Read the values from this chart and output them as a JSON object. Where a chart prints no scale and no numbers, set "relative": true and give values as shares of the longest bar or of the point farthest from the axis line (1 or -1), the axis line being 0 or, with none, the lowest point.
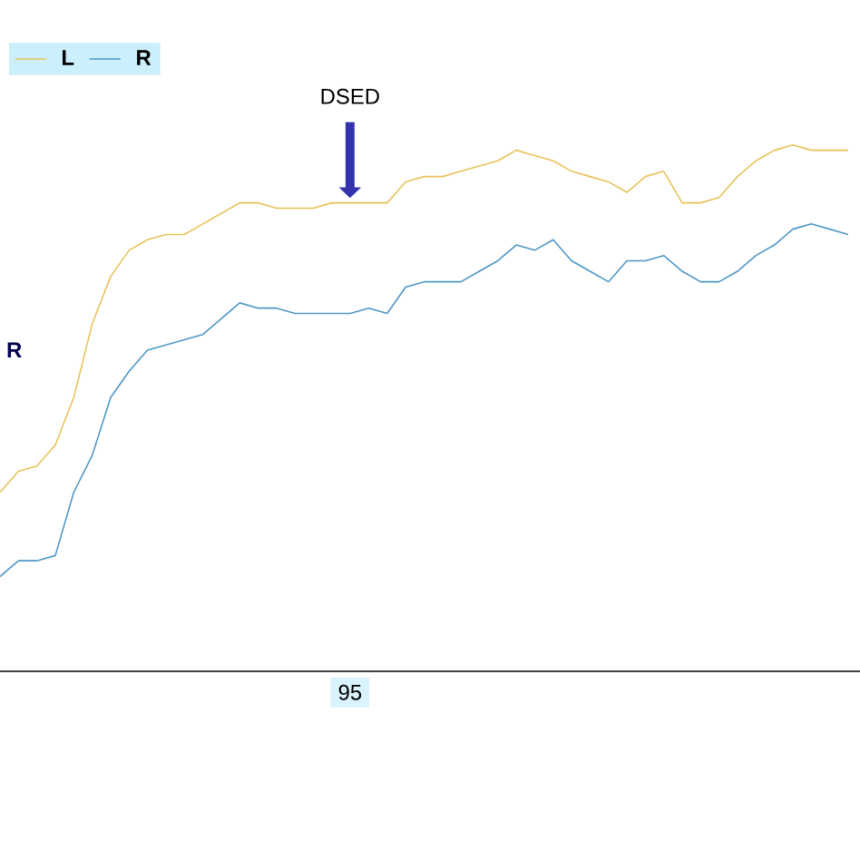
{
  "chart_data": {
    "type": "line",
    "relative": true,
    "categories": [
      null,
      null,
      null,
      null,
      null,
      null,
      null,
      null,
      null,
      null,
      null,
      null,
      null,
      null,
      null,
      null,
      null,
      null,
      null,
      null,
      null,
      null,
      null,
      null,
      null,
      null,
      null,
      null,
      null,
      null,
      null,
      null,
      null,
      null,
      null,
      null,
      null,
      null,
      null,
      null,
      null,
      null,
      null,
      null,
      null,
      null,
      null
    ],
    "series": [
      {
        "name": "L",
        "color": "#e8c35a",
        "values": [
          0.34,
          0.38,
          0.39,
          0.43,
          0.52,
          0.66,
          0.75,
          0.8,
          0.82,
          0.83,
          0.83,
          0.85,
          0.87,
          0.89,
          0.89,
          0.88,
          0.88,
          0.88,
          0.89,
          0.89,
          0.89,
          0.89,
          0.93,
          0.94,
          0.94,
          0.95,
          0.96,
          0.97,
          0.99,
          0.98,
          0.97,
          0.95,
          0.94,
          0.93,
          0.91,
          0.94,
          0.95,
          0.89,
          0.89,
          0.9,
          0.94,
          0.97,
          0.99,
          1,
          0.99,
          0.99,
          0.99
        ]
      },
      {
        "name": "R",
        "color": "#4f97c7",
        "values": [
          0.18,
          0.21,
          0.21,
          0.22,
          0.34,
          0.41,
          0.52,
          0.57,
          0.61,
          0.62,
          0.63,
          0.64,
          0.67,
          0.7,
          0.69,
          0.69,
          0.68,
          0.68,
          0.68,
          0.68,
          0.69,
          0.68,
          0.73,
          0.74,
          0.74,
          0.74,
          0.76,
          0.78,
          0.81,
          0.8,
          0.82,
          0.78,
          0.76,
          0.74,
          0.78,
          0.78,
          0.79,
          0.76,
          0.74,
          0.74,
          0.76,
          0.79,
          0.81,
          0.84,
          0.85,
          0.84,
          0.83
        ]
      }
    ],
    "annotations": [
      "DSED",
      "R",
      "95"
    ],
    "legend": "top left",
    "line_style": "solid"
  }
}
